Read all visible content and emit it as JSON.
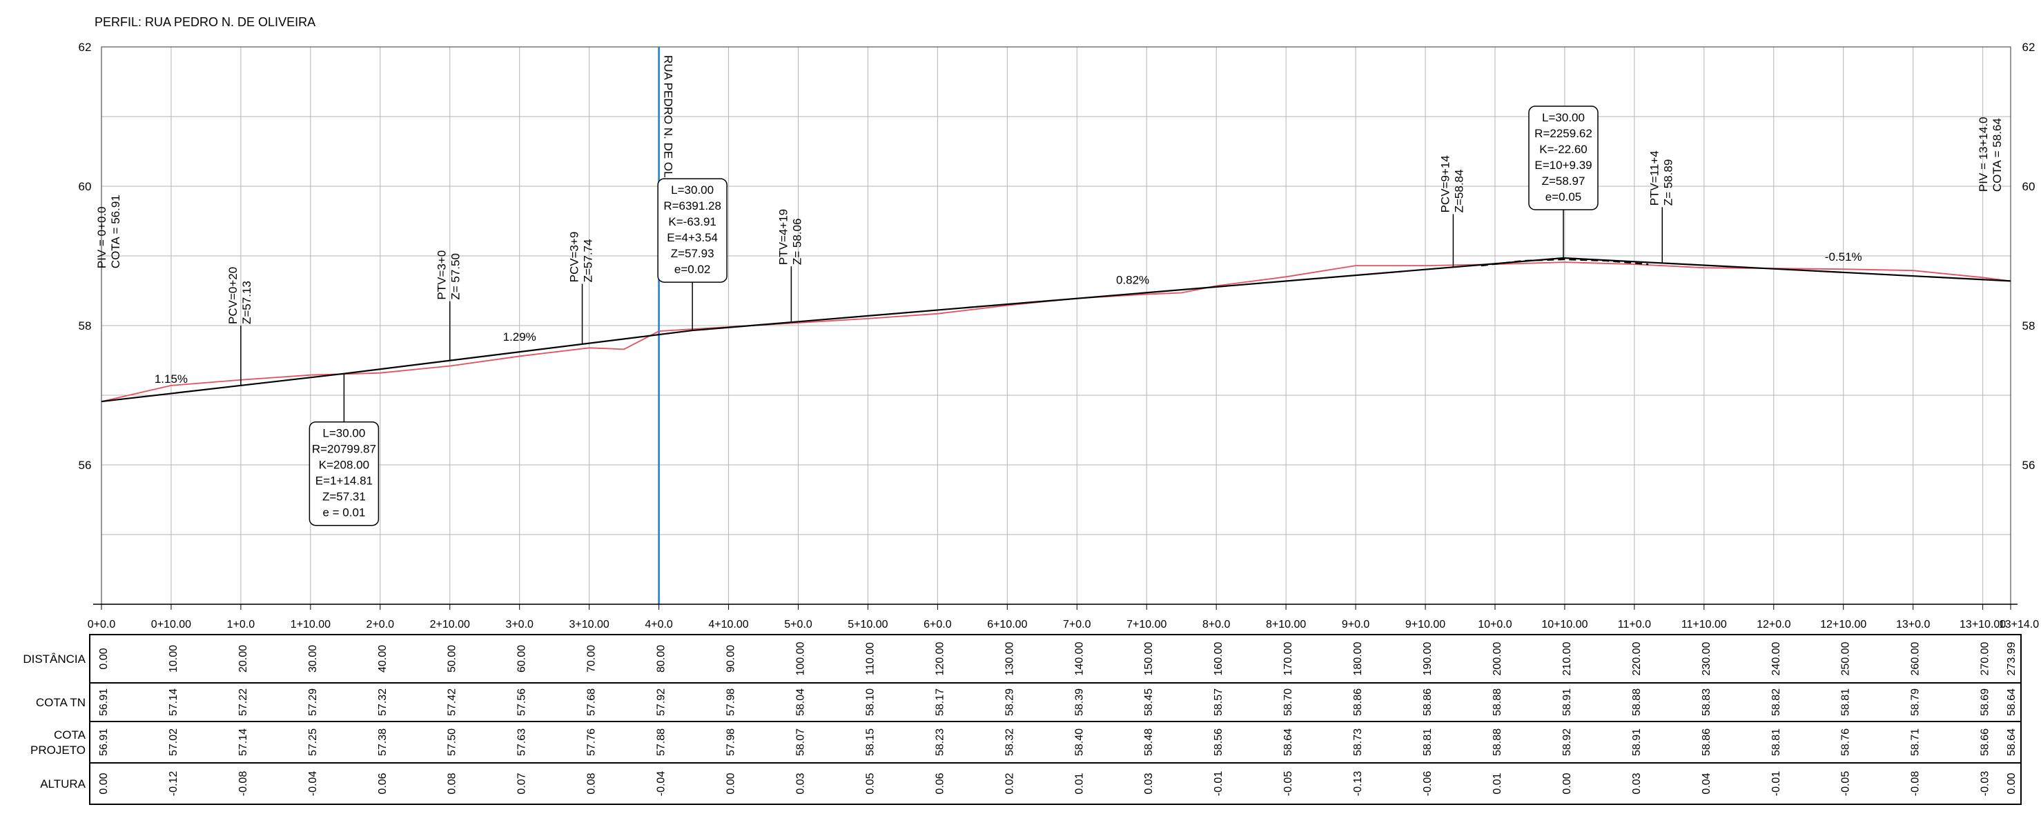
{
  "title": "PERFIL: RUA PEDRO N. DE OLIVEIRA",
  "chart_data": {
    "type": "line",
    "title": "PERFIL: RUA PEDRO N. DE OLIVEIRA",
    "xlim": [
      0,
      274
    ],
    "ylim": [
      54,
      62
    ],
    "y_ticks": [
      "62",
      "60",
      "58",
      "56"
    ],
    "station_labels": [
      "0+0.0",
      "0+10.00",
      "1+0.0",
      "1+10.00",
      "2+0.0",
      "2+10.00",
      "3+0.0",
      "3+10.00",
      "4+0.0",
      "4+10.00",
      "5+0.0",
      "5+10.00",
      "6+0.0",
      "6+10.00",
      "7+0.0",
      "7+10.00",
      "8+0.0",
      "8+10.00",
      "9+0.0",
      "9+10.00",
      "10+0.0",
      "10+10.00",
      "11+0.0",
      "11+10.00",
      "12+0.0",
      "12+10.00",
      "13+0.0",
      "13+10.00",
      "13+14.0"
    ],
    "series": [
      {
        "key": "terrain",
        "color": "#e8505b",
        "x": [
          0,
          10,
          20,
          30,
          40,
          50,
          60,
          70,
          75,
          80,
          90,
          100,
          110,
          120,
          130,
          140,
          150,
          155,
          160,
          170,
          180,
          190,
          200,
          210,
          220,
          230,
          240,
          250,
          260,
          270,
          273.99
        ],
        "y": [
          56.91,
          57.14,
          57.22,
          57.29,
          57.32,
          57.42,
          57.56,
          57.68,
          57.66,
          57.92,
          57.98,
          58.04,
          58.1,
          58.17,
          58.29,
          58.39,
          58.45,
          58.47,
          58.57,
          58.7,
          58.86,
          58.86,
          58.88,
          58.91,
          58.88,
          58.83,
          58.82,
          58.81,
          58.79,
          58.69,
          58.64
        ]
      },
      {
        "key": "project",
        "color": "#000000",
        "x": [
          0,
          34.81,
          84.81,
          209.81,
          273.99
        ],
        "y": [
          56.91,
          57.31,
          57.93,
          58.97,
          58.64
        ]
      },
      {
        "key": "project_curve",
        "color": "#000000",
        "dashed": true,
        "x": [
          198,
          204,
          210,
          216,
          222
        ],
        "y": [
          58.86,
          58.93,
          58.95,
          58.93,
          58.88
        ]
      }
    ],
    "slopes": [
      {
        "label": "1.15%",
        "x": 10,
        "y": 57.18
      },
      {
        "label": "1.29%",
        "x": 60,
        "y": 57.78
      },
      {
        "label": "0.82%",
        "x": 148,
        "y": 58.6
      },
      {
        "label": "-0.51%",
        "x": 250,
        "y": 58.93
      }
    ],
    "point_labels": [
      {
        "lines": [
          "PIV = 0+0.0",
          "COTA = 56.91"
        ],
        "x": 0,
        "y": 56.91,
        "top": 58.8
      },
      {
        "lines": [
          "PCV=0+20",
          "Z=57.13"
        ],
        "x": 20,
        "y": 57.13,
        "top": 58.0
      },
      {
        "lines": [
          "PTV=3+0",
          "Z= 57.50"
        ],
        "x": 50,
        "y": 57.5,
        "top": 58.35
      },
      {
        "lines": [
          "PCV=3+9",
          "Z=57.74"
        ],
        "x": 69,
        "y": 57.74,
        "top": 58.6
      },
      {
        "lines": [
          "PTV=4+19",
          "Z= 58.06"
        ],
        "x": 99,
        "y": 58.06,
        "top": 58.85
      },
      {
        "lines": [
          "PCV=9+14",
          "Z=58.84"
        ],
        "x": 194,
        "y": 58.84,
        "top": 59.6
      },
      {
        "lines": [
          "PTV=11+4",
          "Z= 58.89"
        ],
        "x": 224,
        "y": 58.89,
        "top": 59.7
      },
      {
        "lines": [
          "PIV = 13+14.0",
          "COTA = 58.64"
        ],
        "x": 273.99,
        "y": 58.64,
        "top": 59.9
      }
    ],
    "curve_boxes": [
      {
        "lines": [
          "L=30.00",
          "R=20799.87",
          "K=208.00",
          "E=1+14.81",
          "Z=57.31",
          "e = 0.01"
        ],
        "x": 34.81,
        "y": 57.31,
        "side": "below"
      },
      {
        "lines": [
          "L=30.00",
          "R=6391.28",
          "K=-63.91",
          "E=4+3.54",
          "Z=57.93",
          "e=0.02"
        ],
        "x": 84.81,
        "y": 57.93,
        "side": "above"
      },
      {
        "lines": [
          "L=30.00",
          "R=2259.62",
          "K=-22.60",
          "E=10+9.39",
          "Z=58.97",
          "e=0.05"
        ],
        "x": 209.81,
        "y": 58.97,
        "side": "above"
      }
    ],
    "intersection": {
      "label": "RUA PEDRO N. DE OLIVEIRA",
      "x": 80,
      "color": "#1a7fd4"
    }
  },
  "table": {
    "row_labels": [
      [
        "DISTÂNCIA"
      ],
      [
        "COTA TN"
      ],
      [
        "COTA",
        "PROJETO"
      ],
      [
        "ALTURA"
      ]
    ],
    "x": [
      0,
      10,
      20,
      30,
      40,
      50,
      60,
      70,
      80,
      90,
      100,
      110,
      120,
      130,
      140,
      150,
      160,
      170,
      180,
      190,
      200,
      210,
      220,
      230,
      240,
      250,
      260,
      270,
      273.99
    ],
    "distancia": [
      "0.00",
      "10.00",
      "20.00",
      "30.00",
      "40.00",
      "50.00",
      "60.00",
      "70.00",
      "80.00",
      "90.00",
      "100.00",
      "110.00",
      "120.00",
      "130.00",
      "140.00",
      "150.00",
      "160.00",
      "170.00",
      "180.00",
      "190.00",
      "200.00",
      "210.00",
      "220.00",
      "230.00",
      "240.00",
      "250.00",
      "260.00",
      "270.00",
      "273.99"
    ],
    "cota_tn": [
      "56.91",
      "57.14",
      "57.22",
      "57.29",
      "57.32",
      "57.42",
      "57.56",
      "57.68",
      "57.92",
      "57.98",
      "58.04",
      "58.10",
      "58.17",
      "58.29",
      "58.39",
      "58.45",
      "58.57",
      "58.70",
      "58.86",
      "58.86",
      "58.88",
      "58.91",
      "58.88",
      "58.83",
      "58.82",
      "58.81",
      "58.79",
      "58.69",
      "58.64"
    ],
    "cota_projeto": [
      "56.91",
      "57.02",
      "57.14",
      "57.25",
      "57.38",
      "57.50",
      "57.63",
      "57.76",
      "57.88",
      "57.98",
      "58.07",
      "58.15",
      "58.23",
      "58.32",
      "58.40",
      "58.48",
      "58.56",
      "58.64",
      "58.73",
      "58.81",
      "58.88",
      "58.92",
      "58.91",
      "58.86",
      "58.81",
      "58.76",
      "58.71",
      "58.66",
      "58.64"
    ],
    "altura": [
      "0.00",
      "-0.12",
      "-0.08",
      "-0.04",
      "0.06",
      "0.08",
      "0.07",
      "0.08",
      "-0.04",
      "0.00",
      "0.03",
      "0.05",
      "0.06",
      "0.02",
      "0.01",
      "0.03",
      "-0.01",
      "-0.05",
      "-0.13",
      "-0.06",
      "0.01",
      "0.00",
      "0.03",
      "0.04",
      "-0.01",
      "-0.05",
      "-0.08",
      "-0.03",
      "0.00"
    ]
  }
}
